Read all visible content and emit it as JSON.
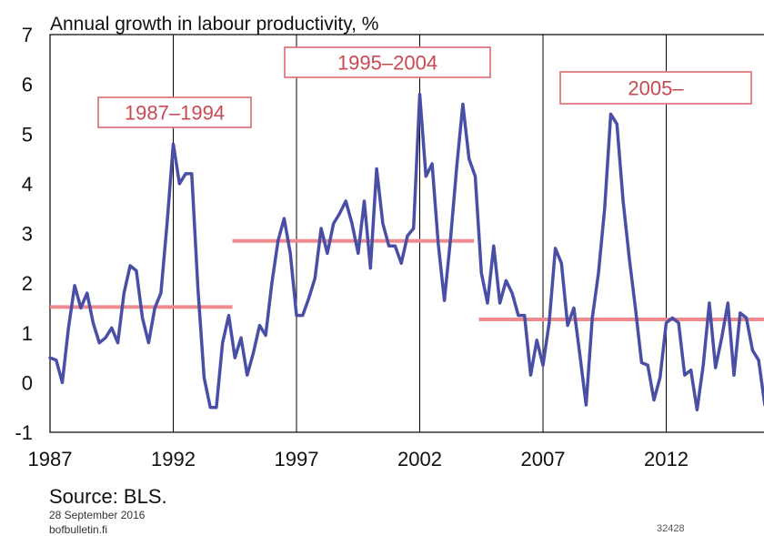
{
  "chart_data": {
    "type": "line",
    "title": "Annual growth in labour productivity, %",
    "xlabel": "",
    "ylabel": "",
    "ylim": [
      -1,
      7
    ],
    "xlim": [
      1987.0,
      2016.0
    ],
    "y_ticks": [
      "7",
      "6",
      "5",
      "4",
      "3",
      "2",
      "1",
      "0",
      "-1"
    ],
    "x_ticks": [
      "1987",
      "1992",
      "1997",
      "2002",
      "2007",
      "2012"
    ],
    "x_tick_values": [
      1987,
      1992,
      1997,
      2002,
      2007,
      2012
    ],
    "y_tick_values": [
      7,
      6,
      5,
      4,
      3,
      2,
      1,
      0,
      -1
    ],
    "grid": "vertical",
    "line_color": "#4a4fa6",
    "mean_color": "#f08a8f",
    "box_color": "#e07a80",
    "series": [
      {
        "x": [
          1987.0,
          1987.25,
          1987.5,
          1987.75,
          1988.0,
          1988.25,
          1988.5,
          1988.75,
          1989.0,
          1989.25,
          1989.5,
          1989.75,
          1990.0,
          1990.25,
          1990.5,
          1990.75,
          1991.0,
          1991.25,
          1991.5,
          1991.75,
          1992.0,
          1992.25,
          1992.5,
          1992.75,
          1993.0,
          1993.25,
          1993.5,
          1993.75,
          1994.0,
          1994.25,
          1994.5,
          1994.75,
          1995.0,
          1995.25,
          1995.5,
          1995.75,
          1996.0,
          1996.25,
          1996.5,
          1996.75,
          1997.0,
          1997.25,
          1997.5,
          1997.75,
          1998.0,
          1998.25,
          1998.5,
          1998.75,
          1999.0,
          1999.25,
          1999.5,
          1999.75,
          2000.0,
          2000.25,
          2000.5,
          2000.75,
          2001.0,
          2001.25,
          2001.5,
          2001.75,
          2002.0,
          2002.25,
          2002.5,
          2002.75,
          2003.0,
          2003.25,
          2003.5,
          2003.75,
          2004.0,
          2004.25,
          2004.5,
          2004.75,
          2005.0,
          2005.25,
          2005.5,
          2005.75,
          2006.0,
          2006.25,
          2006.5,
          2006.75,
          2007.0,
          2007.25,
          2007.5,
          2007.75,
          2008.0,
          2008.25,
          2008.5,
          2008.75,
          2009.0,
          2009.25,
          2009.5,
          2009.75,
          2010.0,
          2010.25,
          2010.5,
          2010.75,
          2011.0,
          2011.25,
          2011.5,
          2011.75,
          2012.0,
          2012.25,
          2012.5,
          2012.75,
          2013.0,
          2013.25,
          2013.5,
          2013.75,
          2014.0,
          2014.25,
          2014.5,
          2014.75,
          2015.0,
          2015.25,
          2015.5,
          2015.75,
          2016.0
        ],
        "values": [
          0.5,
          0.45,
          0.0,
          1.1,
          1.95,
          1.5,
          1.8,
          1.2,
          0.8,
          0.9,
          1.1,
          0.8,
          1.8,
          2.35,
          2.25,
          1.3,
          0.8,
          1.5,
          1.8,
          3.2,
          4.8,
          4.0,
          4.2,
          4.2,
          1.9,
          0.1,
          -0.5,
          -0.5,
          0.8,
          1.35,
          0.5,
          0.9,
          0.15,
          0.6,
          1.15,
          0.95,
          2.0,
          2.85,
          3.3,
          2.6,
          1.35,
          1.35,
          1.7,
          2.1,
          3.1,
          2.6,
          3.2,
          3.4,
          3.65,
          3.2,
          2.6,
          3.65,
          2.3,
          4.3,
          3.2,
          2.75,
          2.75,
          2.4,
          2.95,
          3.1,
          5.8,
          4.15,
          4.4,
          2.8,
          1.65,
          2.9,
          4.35,
          5.6,
          4.5,
          4.15,
          2.2,
          1.6,
          2.75,
          1.6,
          2.05,
          1.8,
          1.35,
          1.35,
          0.15,
          0.85,
          0.35,
          1.2,
          2.7,
          2.4,
          1.15,
          1.5,
          0.55,
          -0.45,
          1.3,
          2.2,
          3.5,
          5.4,
          5.2,
          3.65,
          2.5,
          1.5,
          0.4,
          0.35,
          -0.35,
          0.1,
          1.2,
          1.3,
          1.2,
          0.15,
          0.25,
          -0.55,
          0.35,
          1.6,
          0.3,
          0.9,
          1.6,
          0.15,
          1.4,
          1.3,
          0.65,
          0.45,
          -0.45
        ]
      }
    ],
    "period_means": [
      {
        "label": "1987–1994",
        "start": 1987.0,
        "end": 1994.4,
        "mean": 1.52
      },
      {
        "label": "1995–2004",
        "start": 1994.4,
        "end": 2004.2,
        "mean": 2.85
      },
      {
        "label": "2005–",
        "start": 2004.4,
        "end": 2016.0,
        "mean": 1.27
      }
    ]
  },
  "footer": {
    "source": "Source: BLS.",
    "date": "28 September 2016",
    "site": "bofbulletin.fi",
    "code": "32428"
  }
}
